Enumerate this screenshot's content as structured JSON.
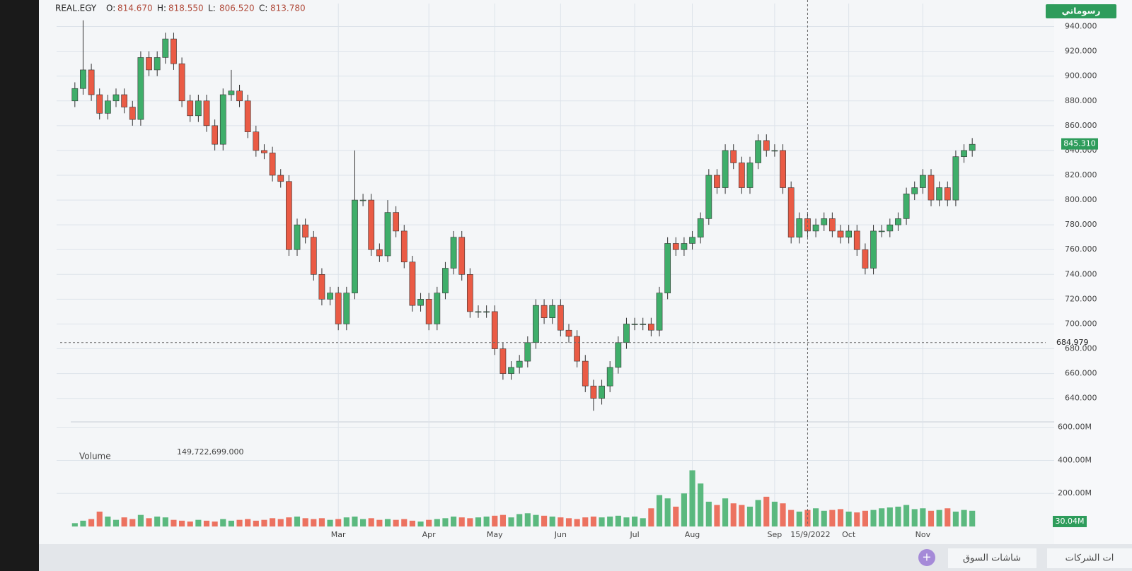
{
  "chart_data": {
    "type": "candlestick",
    "symbol": "REAL.EGY",
    "ohlc_readout": [
      {
        "key": "O:",
        "text": "814.670"
      },
      {
        "key": "H:",
        "text": "818.550"
      },
      {
        "key": "L:",
        "text": "806.520"
      },
      {
        "key": "C:",
        "text": "813.780"
      }
    ],
    "open": [
      880,
      890,
      905,
      885,
      870,
      880,
      885,
      875,
      865,
      915,
      905,
      915,
      930,
      910,
      880,
      868,
      880,
      860,
      845,
      885,
      888,
      880,
      855,
      840,
      838,
      820,
      815,
      760,
      780,
      770,
      740,
      720,
      725,
      700,
      725,
      800,
      800,
      760,
      755,
      790,
      775,
      750,
      715,
      720,
      700,
      725,
      745,
      770,
      740,
      710,
      710,
      710,
      680,
      660,
      665,
      670,
      685,
      715,
      705,
      715,
      695,
      690,
      670,
      650,
      640,
      650,
      665,
      685,
      700,
      700,
      700,
      695,
      725,
      765,
      760,
      765,
      770,
      785,
      820,
      810,
      840,
      830,
      810,
      830,
      848,
      840,
      840,
      810,
      770,
      785,
      775,
      780,
      785,
      775,
      770,
      775,
      760,
      745,
      775,
      775,
      780,
      785,
      805,
      810,
      820,
      800,
      810,
      800,
      835,
      840
    ],
    "high": [
      895,
      945,
      910,
      890,
      885,
      890,
      890,
      880,
      920,
      920,
      920,
      935,
      935,
      915,
      885,
      885,
      885,
      865,
      890,
      905,
      893,
      885,
      860,
      845,
      843,
      825,
      820,
      785,
      785,
      775,
      745,
      730,
      730,
      730,
      840,
      805,
      805,
      765,
      800,
      795,
      780,
      755,
      725,
      725,
      730,
      750,
      775,
      775,
      745,
      715,
      715,
      715,
      685,
      670,
      675,
      690,
      720,
      720,
      720,
      720,
      700,
      695,
      675,
      655,
      655,
      670,
      690,
      705,
      705,
      705,
      705,
      730,
      770,
      770,
      770,
      775,
      790,
      825,
      825,
      845,
      845,
      835,
      835,
      853,
      853,
      845,
      845,
      815,
      790,
      790,
      785,
      790,
      790,
      780,
      780,
      780,
      765,
      780,
      780,
      785,
      790,
      810,
      815,
      825,
      825,
      815,
      815,
      840,
      845,
      850
    ],
    "low": [
      875,
      885,
      880,
      865,
      865,
      875,
      870,
      860,
      860,
      900,
      900,
      910,
      905,
      875,
      863,
      863,
      855,
      840,
      840,
      880,
      875,
      850,
      835,
      833,
      815,
      810,
      755,
      755,
      765,
      735,
      715,
      715,
      695,
      695,
      720,
      795,
      755,
      750,
      750,
      770,
      745,
      710,
      710,
      695,
      695,
      720,
      740,
      735,
      705,
      705,
      705,
      675,
      655,
      655,
      660,
      665,
      680,
      700,
      700,
      690,
      685,
      665,
      645,
      630,
      635,
      645,
      660,
      680,
      695,
      695,
      690,
      690,
      720,
      755,
      755,
      760,
      765,
      780,
      805,
      805,
      825,
      805,
      805,
      825,
      835,
      835,
      805,
      765,
      765,
      770,
      770,
      775,
      770,
      765,
      765,
      755,
      740,
      740,
      770,
      770,
      775,
      780,
      800,
      805,
      795,
      795,
      795,
      795,
      830,
      835
    ],
    "close": [
      890,
      905,
      885,
      870,
      880,
      885,
      875,
      865,
      915,
      905,
      915,
      930,
      910,
      880,
      868,
      880,
      860,
      845,
      885,
      888,
      880,
      855,
      840,
      838,
      820,
      815,
      760,
      780,
      770,
      740,
      720,
      725,
      700,
      725,
      800,
      800,
      760,
      755,
      790,
      775,
      750,
      715,
      720,
      700,
      725,
      745,
      770,
      740,
      710,
      710,
      710,
      680,
      660,
      665,
      670,
      685,
      715,
      705,
      715,
      695,
      690,
      670,
      650,
      640,
      650,
      665,
      685,
      700,
      700,
      700,
      695,
      725,
      765,
      760,
      765,
      770,
      785,
      820,
      810,
      840,
      830,
      810,
      830,
      848,
      840,
      840,
      810,
      770,
      785,
      775,
      780,
      785,
      775,
      770,
      775,
      760,
      745,
      775,
      775,
      780,
      785,
      805,
      810,
      820,
      800,
      810,
      800,
      835,
      840,
      845
    ],
    "up_color": "#3fae6a",
    "down_color": "#ea5b45",
    "ylim": [
      625,
      950
    ],
    "yticks": [
      {
        "value": 640,
        "label": "640.000"
      },
      {
        "value": 660,
        "label": "660.000"
      },
      {
        "value": 680,
        "label": "680.000"
      },
      {
        "value": 700,
        "label": "700.000"
      },
      {
        "value": 720,
        "label": "720.000"
      },
      {
        "value": 740,
        "label": "740.000"
      },
      {
        "value": 760,
        "label": "760.000"
      },
      {
        "value": 780,
        "label": "780.000"
      },
      {
        "value": 800,
        "label": "800.000"
      },
      {
        "value": 820,
        "label": "820.000"
      },
      {
        "value": 840,
        "label": "840.000"
      },
      {
        "value": 860,
        "label": "860.000"
      },
      {
        "value": 880,
        "label": "880.000"
      },
      {
        "value": 900,
        "label": "900.000"
      },
      {
        "value": 920,
        "label": "920.000"
      },
      {
        "value": 940,
        "label": "940.000"
      }
    ],
    "last_price": {
      "value": 845.31,
      "label": "845.310"
    },
    "crosshair": {
      "value": 684.979,
      "label": "684.979",
      "date": "15/9/2022"
    },
    "grid": true,
    "xtick_labels": [
      "Mar",
      "Apr",
      "May",
      "Jun",
      "Jul",
      "Aug",
      "Sep",
      "Oct",
      "Nov"
    ],
    "volume": {
      "label": "Volume",
      "readout": "149,722,699.000",
      "values": [
        20,
        35,
        45,
        90,
        60,
        40,
        55,
        45,
        70,
        50,
        60,
        55,
        40,
        35,
        30,
        40,
        35,
        30,
        45,
        35,
        40,
        45,
        35,
        40,
        50,
        45,
        55,
        60,
        50,
        45,
        50,
        40,
        45,
        55,
        60,
        45,
        50,
        40,
        45,
        40,
        45,
        35,
        30,
        40,
        45,
        50,
        60,
        55,
        50,
        55,
        60,
        65,
        70,
        55,
        75,
        80,
        70,
        65,
        60,
        55,
        50,
        45,
        55,
        60,
        55,
        60,
        65,
        55,
        60,
        50,
        110,
        190,
        170,
        120,
        200,
        340,
        260,
        150,
        130,
        170,
        140,
        130,
        120,
        160,
        180,
        150,
        140,
        100,
        90,
        100,
        110,
        95,
        100,
        105,
        90,
        85,
        95,
        100,
        110,
        115,
        120,
        130,
        105,
        110,
        95,
        100,
        110,
        90,
        100,
        95
      ],
      "ylim": [
        0,
        620
      ],
      "yticks": [
        {
          "value": 200,
          "label": "200.00M"
        },
        {
          "value": 400,
          "label": "400.00M"
        },
        {
          "value": 600,
          "label": "600.00M"
        }
      ],
      "last": {
        "value": 30.04,
        "label": "30.04M"
      }
    }
  },
  "ui": {
    "charts_button": "رسوماتي",
    "tabs": [
      "شاشات السوق",
      "ات الشركات"
    ]
  }
}
